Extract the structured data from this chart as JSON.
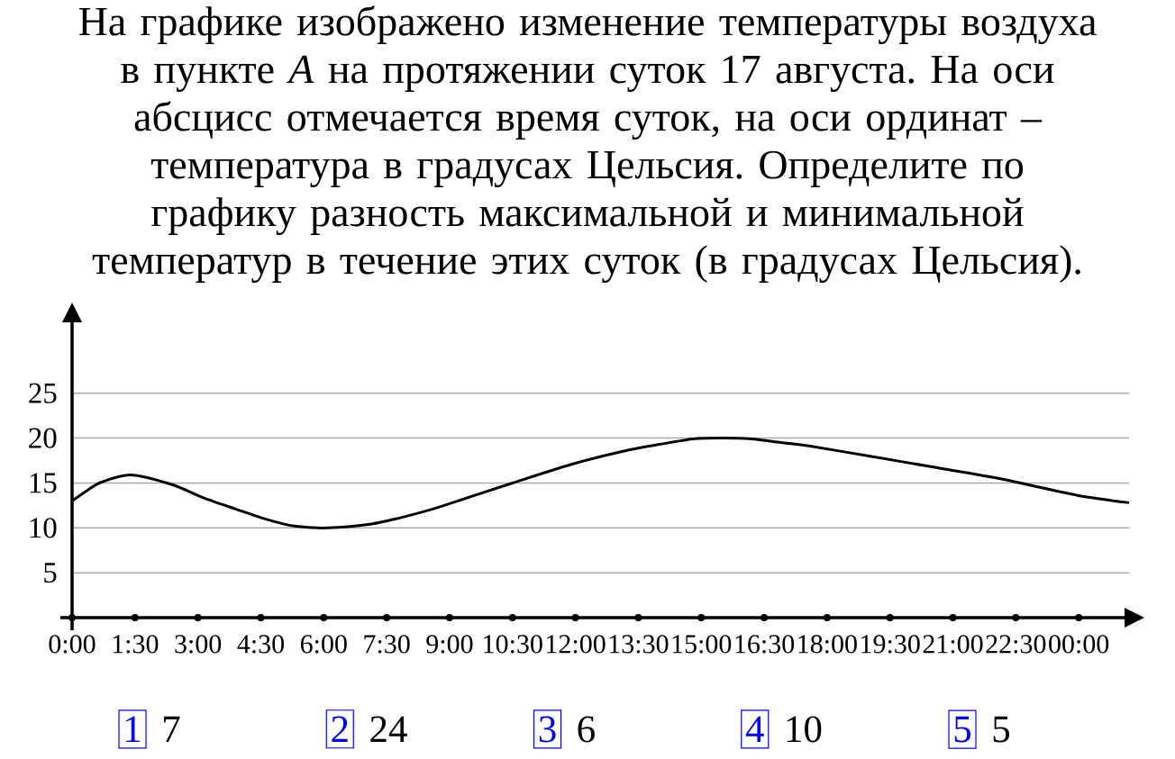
{
  "chart_data": {
    "type": "line",
    "title": "На графике изображено изменение температуры воздуха в пункте *A* на протяжении суток 17 августа. На оси абсцисс отмечается время суток, на оси ординат – температура в градусах Цельсия. Определите по графику разность максимальной и минимальной температур в течение этих суток (в градусах Цельсия).",
    "x": [
      0,
      0.4,
      0.7,
      1.4,
      2.4,
      3.1,
      3.9,
      4.6,
      5.3,
      6.1,
      7.1,
      7.8,
      8.6,
      9.0,
      10.5,
      12.0,
      13.3,
      14.0,
      14.8,
      15.5,
      16.2,
      16.9,
      17.6,
      19.0,
      20.5,
      22.0,
      23.0,
      24.0,
      25.2
    ],
    "values": [
      13.0,
      14.3,
      15.1,
      15.9,
      14.8,
      13.4,
      12.1,
      11.0,
      10.2,
      10.0,
      10.4,
      11.1,
      12.1,
      12.7,
      15.0,
      17.2,
      18.7,
      19.3,
      19.9,
      20.0,
      19.9,
      19.5,
      19.1,
      18.0,
      16.8,
      15.6,
      14.6,
      13.6,
      12.8
    ],
    "color": "#000000",
    "xlim": [
      0,
      25.2
    ],
    "ylim": [
      0,
      33
    ],
    "xticks": [
      {
        "value": 0,
        "label": "0:00"
      },
      {
        "value": 1.5,
        "label": "1:30"
      },
      {
        "value": 3,
        "label": "3:00"
      },
      {
        "value": 4.5,
        "label": "4:30"
      },
      {
        "value": 6,
        "label": "6:00"
      },
      {
        "value": 7.5,
        "label": "7:30"
      },
      {
        "value": 9,
        "label": "9:00"
      },
      {
        "value": 10.5,
        "label": "10:30"
      },
      {
        "value": 12,
        "label": "12:00"
      },
      {
        "value": 13.5,
        "label": "13:30"
      },
      {
        "value": 15,
        "label": "15:00"
      },
      {
        "value": 16.5,
        "label": "16:30"
      },
      {
        "value": 18,
        "label": "18:00"
      },
      {
        "value": 19.5,
        "label": "19:30"
      },
      {
        "value": 21,
        "label": "21:00"
      },
      {
        "value": 22.5,
        "label": "22:30"
      },
      {
        "value": 24,
        "label": "00:00"
      }
    ],
    "yticks": [
      5,
      10,
      15,
      20,
      25
    ],
    "grid": "y",
    "annotations": [
      "1",
      "7",
      "2",
      "24",
      "3",
      "6",
      "4",
      "10",
      "5",
      "5"
    ]
  }
}
